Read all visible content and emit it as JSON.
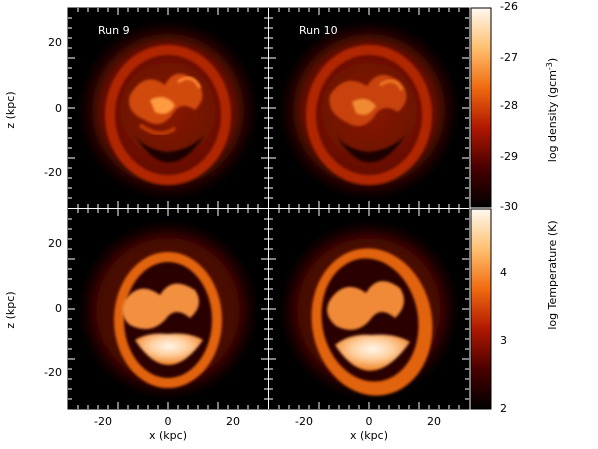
{
  "panels": {
    "top_left_label": "Run 9",
    "top_right_label": "Run 10"
  },
  "axes": {
    "y_label": "z (kpc)",
    "x_label": "x (kpc)",
    "y_ticks": [
      "20",
      "0",
      "-20"
    ],
    "x_ticks": [
      "-20",
      "0",
      "20"
    ]
  },
  "colorbars": {
    "density": {
      "ticks": [
        "-26",
        "-27",
        "-28",
        "-29",
        "-30"
      ]
    },
    "temperature": {
      "ticks": [
        "4",
        "3",
        "2"
      ]
    }
  },
  "colors": {
    "background": "#000000",
    "dark_red": "#5a0000",
    "mid_red": "#a01500",
    "orange": "#e06010",
    "light_orange": "#ffb050",
    "pale": "#fff0e0"
  }
}
